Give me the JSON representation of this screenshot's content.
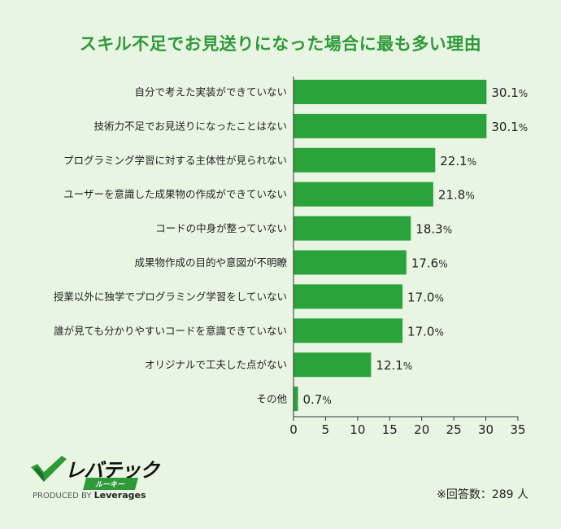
{
  "chart_data": {
    "type": "bar",
    "orientation": "horizontal",
    "title": "スキル不足でお見送りになった場合に最も多い理由",
    "categories": [
      "自分で考えた実装ができていない",
      "技術力不足でお見送りになったことはない",
      "プログラミング学習に対する主体性が見られない",
      "ユーザーを意識した成果物の作成ができていない",
      "コードの中身が整っていない",
      "成果物作成の目的や意図が不明瞭",
      "授業以外に独学でプログラミング学習をしていない",
      "誰が見ても分かりやすいコードを意識できていない",
      "オリジナルで工夫した点がない",
      "その他"
    ],
    "values": [
      30.1,
      30.1,
      22.1,
      21.8,
      18.3,
      17.6,
      17.0,
      17.0,
      12.1,
      0.7
    ],
    "value_labels": [
      "30.1",
      "30.1",
      "22.1",
      "21.8",
      "18.3",
      "17.6",
      "17.0",
      "17.0",
      "12.1",
      "0.7"
    ],
    "value_suffix": "%",
    "xlim": [
      0,
      35
    ],
    "xticks": [
      0,
      5,
      10,
      15,
      20,
      25,
      30,
      35
    ],
    "grid": false,
    "bar_color": "#2aa33a"
  },
  "logo": {
    "wordmark": "レバテック",
    "sub": "ルーキー",
    "produced_by": "PRODUCED BY",
    "company": "Leverages"
  },
  "note": "※回答数：289 人"
}
